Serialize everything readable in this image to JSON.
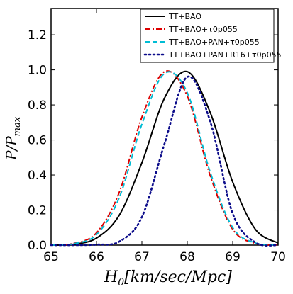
{
  "chart_data": {
    "type": "line",
    "xlabel": "H_0[km/sec/Mpc]",
    "ylabel": "P/P_max",
    "xlim": [
      65,
      70
    ],
    "ylim": [
      0,
      1.35
    ],
    "x_ticks": [
      "65",
      "66",
      "67",
      "68",
      "69",
      "70"
    ],
    "y_ticks": [
      "0.0",
      "0.2",
      "0.4",
      "0.6",
      "0.8",
      "1.0",
      "1.2"
    ],
    "legend_position": "top-right",
    "grid": false,
    "series": [
      {
        "name": "TT+BAO",
        "color": "#000000",
        "style": "solid",
        "x": [
          65.0,
          65.5,
          66.0,
          66.5,
          67.0,
          67.5,
          68.0,
          68.5,
          69.0,
          69.5,
          70.0
        ],
        "y": [
          0.0,
          0.005,
          0.04,
          0.17,
          0.47,
          0.84,
          0.99,
          0.76,
          0.36,
          0.09,
          0.012
        ]
      },
      {
        "name": "TT+BAO+τ0p055",
        "color": "#dd0000",
        "style": "dashdot",
        "x": [
          65.0,
          65.5,
          66.0,
          66.5,
          67.0,
          67.5,
          68.0,
          68.5,
          69.0,
          69.5,
          70.0
        ],
        "y": [
          0.0,
          0.01,
          0.07,
          0.3,
          0.73,
          0.99,
          0.85,
          0.4,
          0.09,
          0.01,
          0.001
        ]
      },
      {
        "name": "TT+BAO+PAN+τ0p055",
        "color": "#00bcd4",
        "style": "dashed",
        "x": [
          65.0,
          65.5,
          66.0,
          66.5,
          67.0,
          67.5,
          68.0,
          68.5,
          69.0,
          69.5,
          70.0
        ],
        "y": [
          0.0,
          0.008,
          0.06,
          0.27,
          0.69,
          0.98,
          0.87,
          0.42,
          0.1,
          0.012,
          0.001
        ]
      },
      {
        "name": "TT+BAO+PAN+R16+τ0p055",
        "color": "#0b0b8a",
        "style": "dotted",
        "x": [
          65.0,
          65.5,
          66.0,
          66.5,
          67.0,
          67.5,
          68.0,
          68.5,
          69.0,
          69.5,
          70.0
        ],
        "y": [
          0.0,
          0.0,
          0.003,
          0.02,
          0.16,
          0.58,
          0.96,
          0.71,
          0.18,
          0.015,
          0.0
        ]
      }
    ]
  }
}
